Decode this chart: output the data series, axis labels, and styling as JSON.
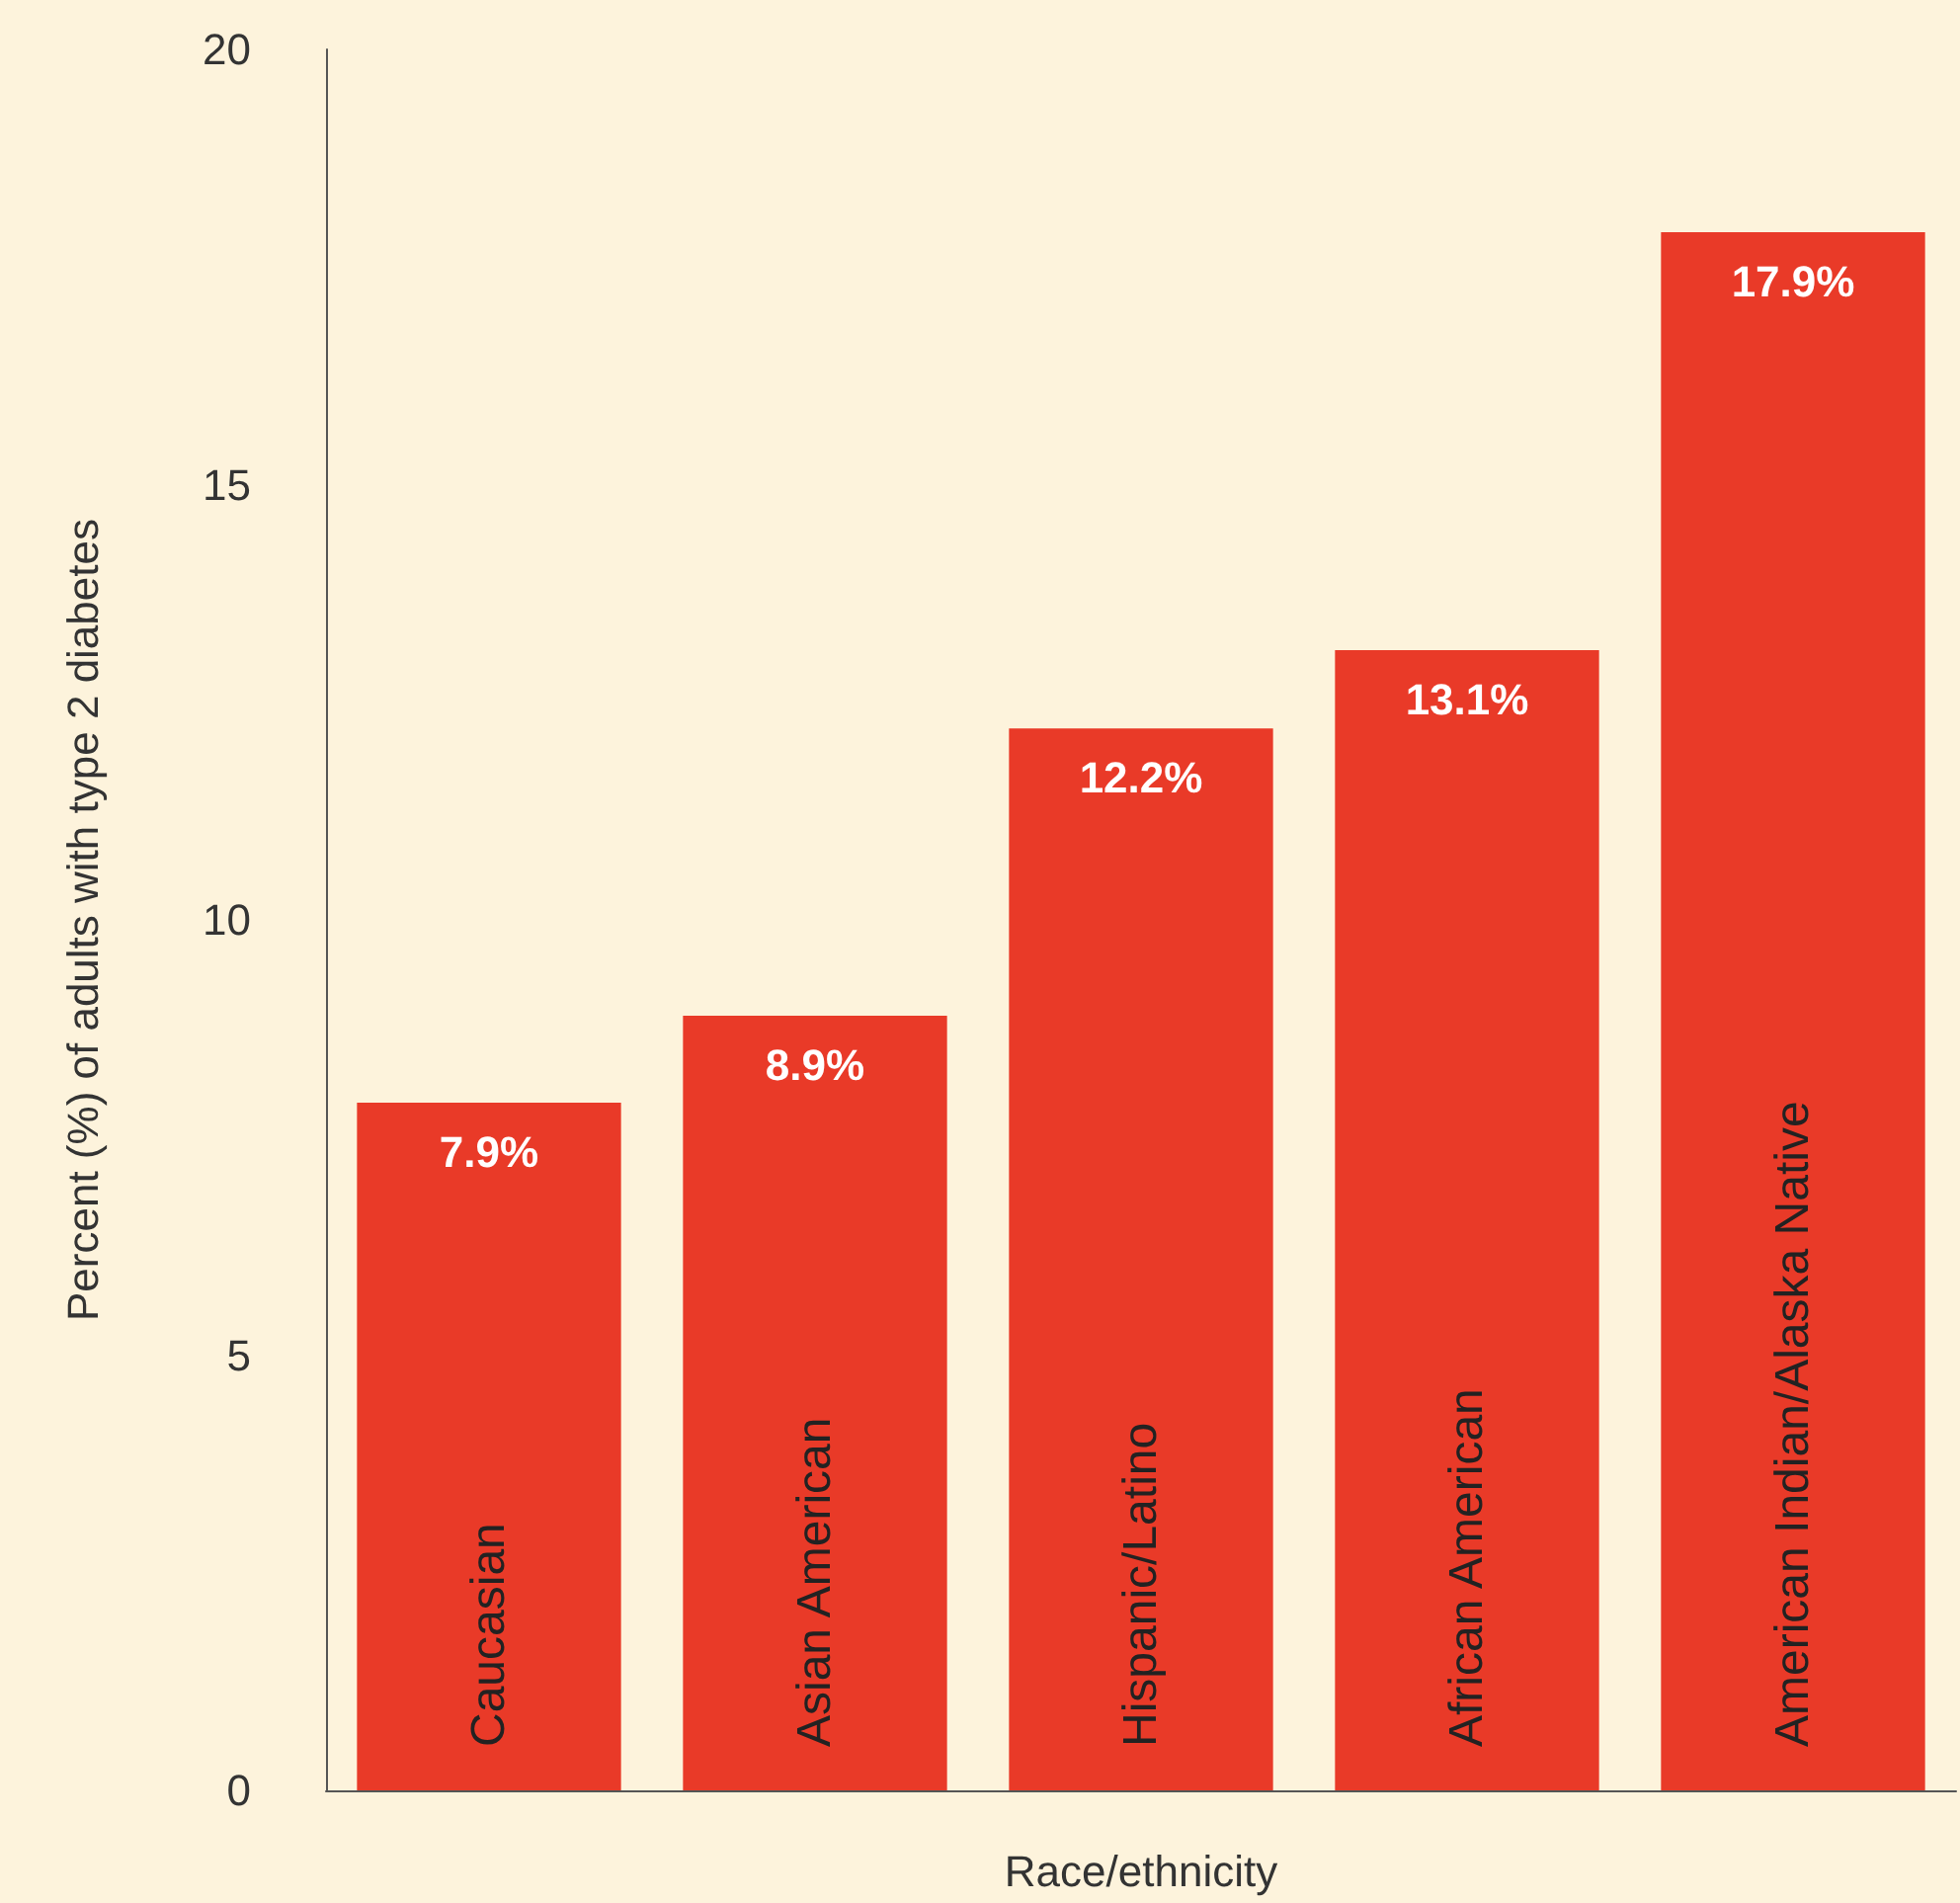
{
  "chart_data": {
    "type": "bar",
    "xlabel": "Race/ethnicity",
    "ylabel": "Percent (%) of adults with type 2 diabetes",
    "categories": [
      "Caucasian",
      "Asian American",
      "Hispanic/Latino",
      "African American",
      "American Indian/Alaska Native"
    ],
    "values": [
      7.9,
      8.9,
      12.2,
      13.1,
      17.9
    ],
    "value_labels": [
      "7.9%",
      "8.9%",
      "12.2%",
      "13.1%",
      "17.9%"
    ],
    "color": "#e93a28",
    "ylim": [
      0,
      20
    ],
    "yticks": [
      0,
      5,
      10,
      15,
      20
    ],
    "grid": false
  }
}
